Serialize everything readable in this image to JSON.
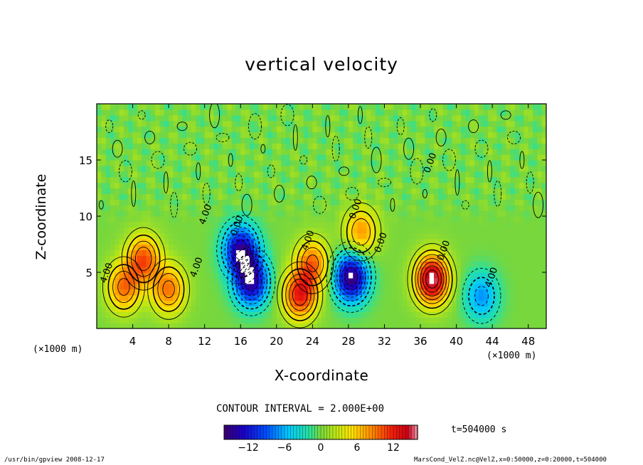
{
  "chart_data": {
    "type": "heatmap",
    "title": "vertical velocity",
    "xlabel": "X-coordinate",
    "ylabel": "Z-coordinate",
    "x_unit_left": "(×1000 m)",
    "x_unit_right": "(×1000 m)",
    "xlim": [
      0,
      50
    ],
    "ylim": [
      0,
      20
    ],
    "xticks": [
      4,
      8,
      12,
      16,
      20,
      24,
      28,
      32,
      36,
      40,
      44,
      48
    ],
    "yticks": [
      5,
      10,
      15
    ],
    "contour_interval": "CONTOUR INTERVAL = 2.000E+00",
    "contour_labels": [
      "4.00",
      "4.00",
      "4.00",
      "4.00",
      "4.00",
      "0.00",
      "0.00",
      "0.00",
      "0.00",
      "0.00"
    ],
    "colorbar": {
      "ticks": [
        -12,
        -6,
        0,
        6,
        12
      ],
      "range": [
        -16,
        16
      ]
    },
    "time_label": "t=504000  s",
    "features": [
      {
        "x": 5.2,
        "z": 6.2,
        "value": 10
      },
      {
        "x": 3.0,
        "z": 3.7,
        "value": 9
      },
      {
        "x": 8.0,
        "z": 3.5,
        "value": 9
      },
      {
        "x": 16.0,
        "z": 7.0,
        "value": -14
      },
      {
        "x": 17.2,
        "z": 4.2,
        "value": -14
      },
      {
        "x": 22.6,
        "z": 3.0,
        "value": 12
      },
      {
        "x": 24.0,
        "z": 5.8,
        "value": 9
      },
      {
        "x": 28.3,
        "z": 4.6,
        "value": -16
      },
      {
        "x": 29.4,
        "z": 8.6,
        "value": 8
      },
      {
        "x": 37.3,
        "z": 4.4,
        "value": 16
      },
      {
        "x": 42.8,
        "z": 2.9,
        "value": -7
      }
    ]
  },
  "footer": {
    "left": "/usr/bin/gpview   2008-12-17",
    "right": "MarsCond_VelZ.nc@VelZ,x=0:50000,z=0:20000,t=504000"
  }
}
